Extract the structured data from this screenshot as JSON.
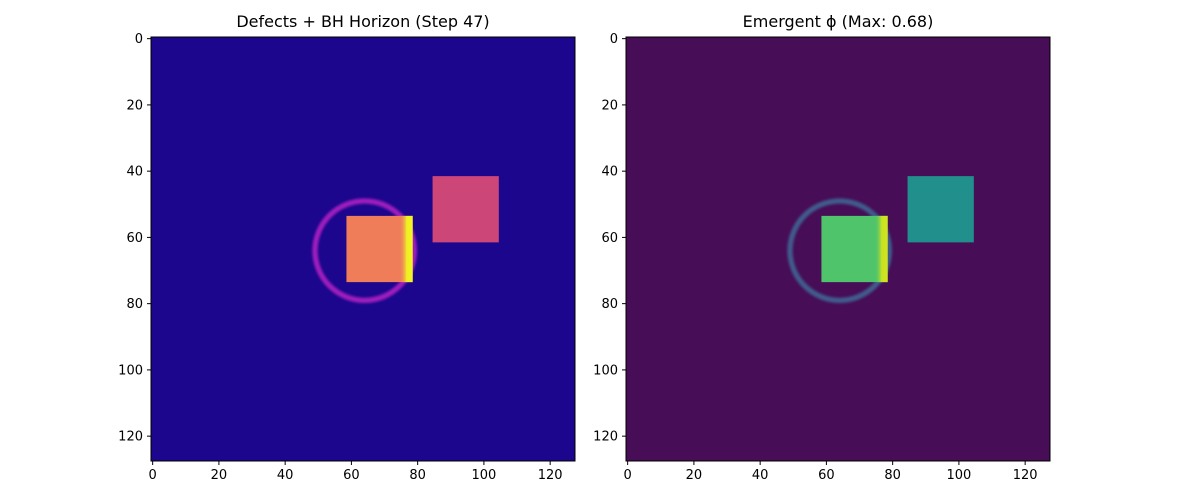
{
  "chart_data": [
    {
      "type": "heatmap",
      "title": "Defects + BH Horizon (Step 47)",
      "colormap": "plasma",
      "grid_size": [
        128,
        128
      ],
      "xlim": [
        0,
        127
      ],
      "ylim": [
        127,
        0
      ],
      "xticks": [
        "0",
        "20",
        "40",
        "60",
        "80",
        "100",
        "120"
      ],
      "yticks": [
        "0",
        "20",
        "40",
        "60",
        "80",
        "100",
        "120"
      ],
      "grid": false,
      "colors": {
        "background": "#1b068d",
        "horizon_ring": "#a01fbd",
        "left_square": "#ef7d5a",
        "left_square_edge": "#f0f921",
        "right_square": "#cc4778"
      },
      "features": [
        {
          "name": "horizon-ring",
          "kind": "ring",
          "center": [
            64,
            64
          ],
          "radius": 15
        },
        {
          "name": "central-defect",
          "kind": "square",
          "x_range": [
            59,
            79
          ],
          "y_range": [
            54,
            74
          ]
        },
        {
          "name": "offset-defect",
          "kind": "square",
          "x_range": [
            85,
            105
          ],
          "y_range": [
            42,
            62
          ]
        }
      ]
    },
    {
      "type": "heatmap",
      "title": "Emergent ϕ (Max: 0.68)",
      "colormap": "viridis",
      "grid_size": [
        128,
        128
      ],
      "xlim": [
        0,
        127
      ],
      "ylim": [
        127,
        0
      ],
      "xticks": [
        "0",
        "20",
        "40",
        "60",
        "80",
        "100",
        "120"
      ],
      "yticks": [
        "0",
        "20",
        "40",
        "60",
        "80",
        "100",
        "120"
      ],
      "grid": false,
      "max_value": 0.68,
      "colors": {
        "background": "#470d56",
        "horizon_ring": "#3f5b8c",
        "left_square": "#4fc46a",
        "left_square_edge": "#d4e41c",
        "right_square": "#21908c"
      },
      "features": [
        {
          "name": "horizon-ring",
          "kind": "ring",
          "center": [
            64,
            64
          ],
          "radius": 15
        },
        {
          "name": "central-defect",
          "kind": "square",
          "x_range": [
            59,
            79
          ],
          "y_range": [
            54,
            74
          ]
        },
        {
          "name": "offset-defect",
          "kind": "square",
          "x_range": [
            85,
            105
          ],
          "y_range": [
            42,
            62
          ]
        }
      ]
    }
  ]
}
